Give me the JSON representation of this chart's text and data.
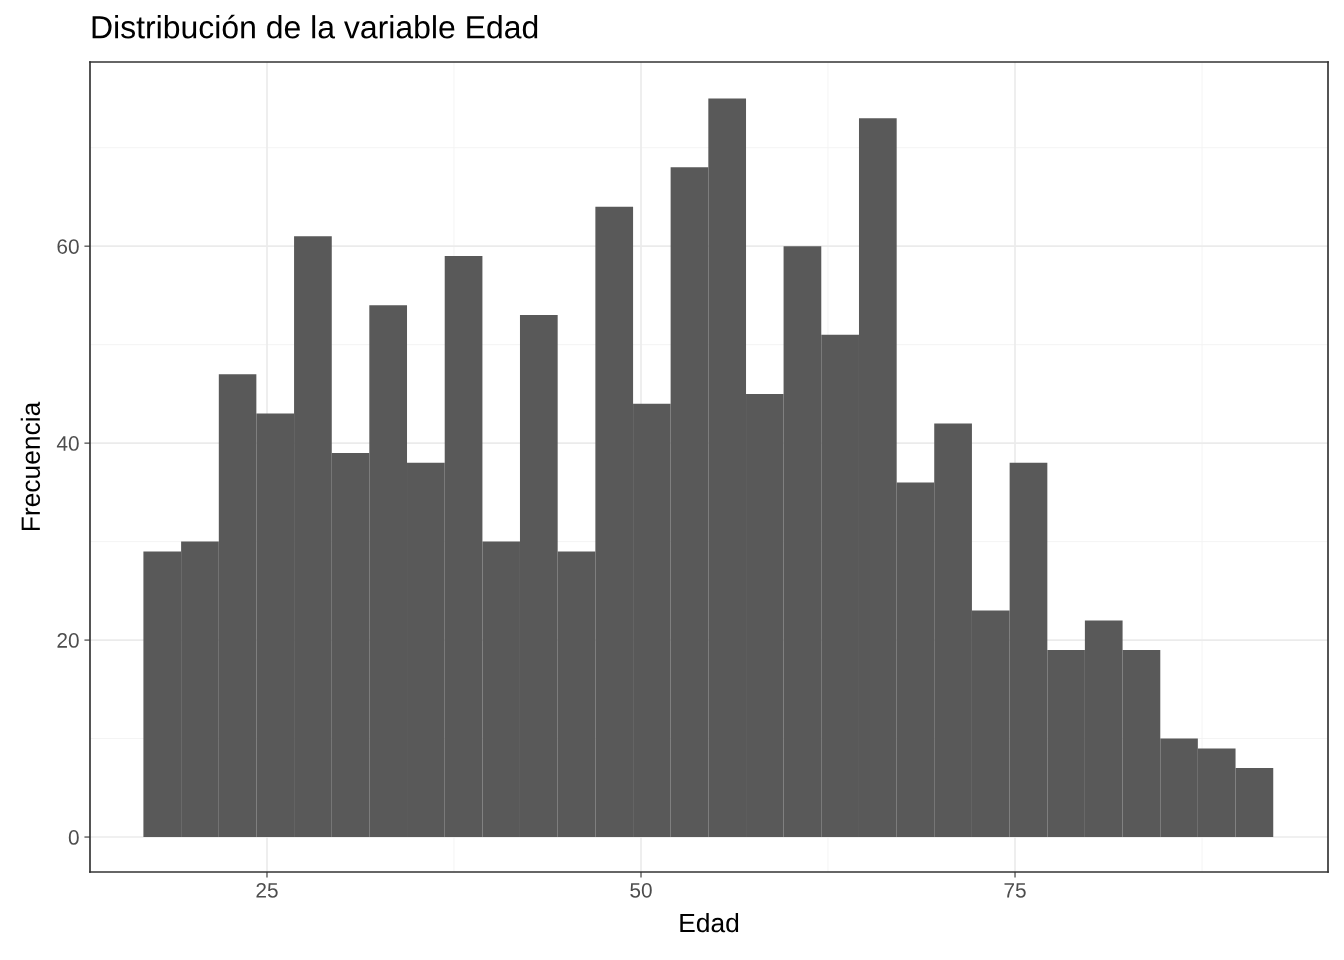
{
  "chart_data": {
    "type": "histogram",
    "title": "Distribución de la variable Edad",
    "xlabel": "Edad",
    "ylabel": "Frecuencia",
    "bins": [
      16.74,
      19.26,
      21.78,
      24.29,
      26.81,
      29.33,
      31.84,
      34.36,
      36.88,
      39.4,
      41.91,
      44.43,
      46.95,
      49.47,
      51.98,
      54.5,
      57.02,
      59.53,
      62.05,
      64.57,
      67.09,
      69.6,
      72.12,
      74.64,
      77.16,
      79.67,
      82.19,
      84.71,
      87.22,
      89.74,
      92.26
    ],
    "values": [
      29,
      30,
      47,
      43,
      61,
      39,
      54,
      38,
      59,
      30,
      53,
      29,
      64,
      44,
      68,
      75,
      45,
      60,
      51,
      73,
      36,
      42,
      23,
      38,
      19,
      22,
      19,
      10,
      9,
      7
    ],
    "color": "#595959",
    "xlim": [
      13.17,
      95.92
    ],
    "xticks": [
      25,
      50,
      75
    ],
    "ylim": [
      -3.55,
      78.7
    ],
    "yticks": [
      0,
      20,
      40,
      60
    ],
    "grid": true
  }
}
